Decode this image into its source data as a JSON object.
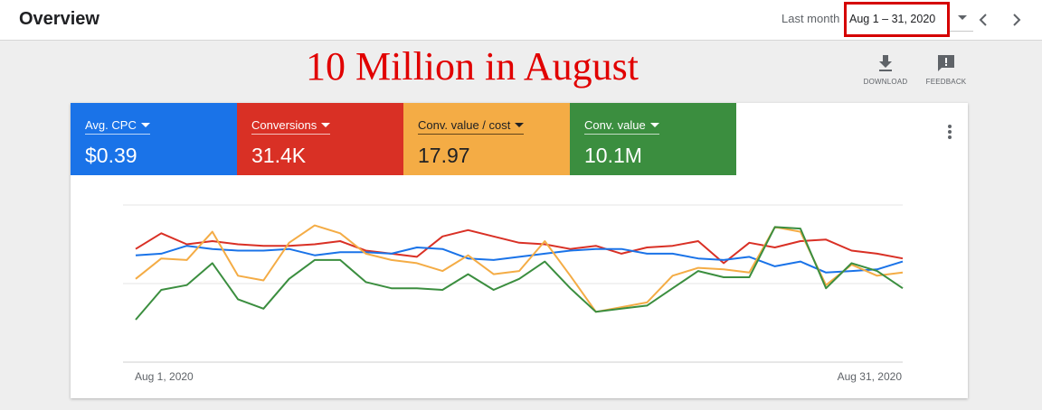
{
  "header": {
    "title": "Overview",
    "range_label": "Last month",
    "range_value": "Aug 1 – 31, 2020"
  },
  "annotation": {
    "headline": "10 Million in August",
    "color": "#e10000"
  },
  "actions": {
    "download_label": "DOWNLOAD",
    "feedback_label": "FEEDBACK"
  },
  "scorecards": [
    {
      "label": "Avg. CPC",
      "value": "$0.39",
      "color": "#1a73e8"
    },
    {
      "label": "Conversions",
      "value": "31.4K",
      "color": "#d93025"
    },
    {
      "label": "Conv. value / cost",
      "value": "17.97",
      "color": "#f4ac45"
    },
    {
      "label": "Conv. value",
      "value": "10.1M",
      "color": "#3b8e3f"
    }
  ],
  "chart_data": {
    "type": "line",
    "x_start_label": "Aug 1, 2020",
    "x_end_label": "Aug 31, 2020",
    "grid": true,
    "x": [
      1,
      2,
      3,
      4,
      5,
      6,
      7,
      8,
      9,
      10,
      11,
      12,
      13,
      14,
      15,
      16,
      17,
      18,
      19,
      20,
      21,
      22,
      23,
      24,
      25,
      26,
      27,
      28,
      29,
      30,
      31
    ],
    "series": [
      {
        "color": "#d93025",
        "values": [
          0.72,
          0.82,
          0.75,
          0.77,
          0.75,
          0.74,
          0.74,
          0.75,
          0.77,
          0.71,
          0.69,
          0.67,
          0.8,
          0.84,
          0.8,
          0.76,
          0.75,
          0.72,
          0.74,
          0.69,
          0.73,
          0.74,
          0.77,
          0.63,
          0.76,
          0.73,
          0.77,
          0.78,
          0.71,
          0.69,
          0.66
        ]
      },
      {
        "color": "#1a73e8",
        "values": [
          0.68,
          0.69,
          0.74,
          0.72,
          0.71,
          0.71,
          0.72,
          0.68,
          0.7,
          0.7,
          0.69,
          0.73,
          0.72,
          0.66,
          0.65,
          0.67,
          0.69,
          0.71,
          0.72,
          0.72,
          0.69,
          0.69,
          0.66,
          0.65,
          0.67,
          0.61,
          0.64,
          0.57,
          0.58,
          0.59,
          0.64
        ]
      },
      {
        "color": "#f4ac45",
        "values": [
          0.53,
          0.66,
          0.65,
          0.83,
          0.55,
          0.52,
          0.76,
          0.87,
          0.82,
          0.69,
          0.65,
          0.63,
          0.58,
          0.68,
          0.56,
          0.58,
          0.77,
          0.55,
          0.32,
          0.35,
          0.38,
          0.55,
          0.6,
          0.59,
          0.57,
          0.86,
          0.83,
          0.49,
          0.62,
          0.55,
          0.57
        ]
      },
      {
        "color": "#3b8e3f",
        "values": [
          0.27,
          0.46,
          0.49,
          0.63,
          0.4,
          0.34,
          0.53,
          0.65,
          0.65,
          0.51,
          0.47,
          0.47,
          0.46,
          0.56,
          0.46,
          0.53,
          0.64,
          0.47,
          0.32,
          0.34,
          0.36,
          0.47,
          0.58,
          0.54,
          0.54,
          0.86,
          0.85,
          0.47,
          0.63,
          0.58,
          0.47
        ]
      }
    ]
  }
}
